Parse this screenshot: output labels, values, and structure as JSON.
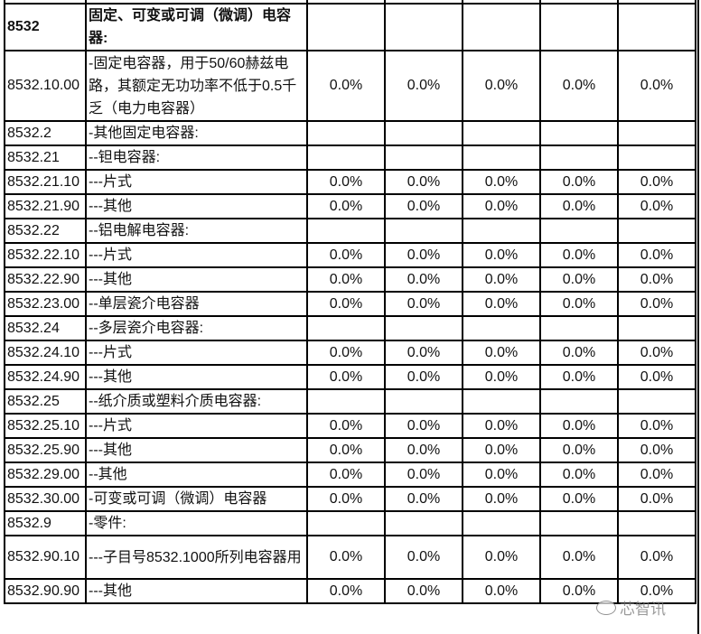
{
  "rows": [
    {
      "code": "8532",
      "desc": "固定、可变或可调（微调）电容器:",
      "rates": [
        "",
        "",
        "",
        "",
        ""
      ],
      "header": true
    },
    {
      "code": "8532.10.00",
      "desc": "-固定电容器，用于50/60赫兹电路，其额定无功功率不低于0.5千乏（电力电容器）",
      "rates": [
        "0.0%",
        "0.0%",
        "0.0%",
        "0.0%",
        "0.0%"
      ]
    },
    {
      "code": "8532.2",
      "desc": "-其他固定电容器:",
      "rates": [
        "",
        "",
        "",
        "",
        ""
      ]
    },
    {
      "code": "8532.21",
      "desc": "--钽电容器:",
      "rates": [
        "",
        "",
        "",
        "",
        ""
      ]
    },
    {
      "code": "8532.21.10",
      "desc": "---片式",
      "rates": [
        "0.0%",
        "0.0%",
        "0.0%",
        "0.0%",
        "0.0%"
      ]
    },
    {
      "code": "8532.21.90",
      "desc": "---其他",
      "rates": [
        "0.0%",
        "0.0%",
        "0.0%",
        "0.0%",
        "0.0%"
      ]
    },
    {
      "code": "8532.22",
      "desc": "--铝电解电容器:",
      "rates": [
        "",
        "",
        "",
        "",
        ""
      ]
    },
    {
      "code": "8532.22.10",
      "desc": "---片式",
      "rates": [
        "0.0%",
        "0.0%",
        "0.0%",
        "0.0%",
        "0.0%"
      ]
    },
    {
      "code": "8532.22.90",
      "desc": "---其他",
      "rates": [
        "0.0%",
        "0.0%",
        "0.0%",
        "0.0%",
        "0.0%"
      ]
    },
    {
      "code": "8532.23.00",
      "desc": "--单层瓷介电容器",
      "rates": [
        "0.0%",
        "0.0%",
        "0.0%",
        "0.0%",
        "0.0%"
      ]
    },
    {
      "code": "8532.24",
      "desc": "--多层瓷介电容器:",
      "rates": [
        "",
        "",
        "",
        "",
        ""
      ]
    },
    {
      "code": "8532.24.10",
      "desc": "---片式",
      "rates": [
        "0.0%",
        "0.0%",
        "0.0%",
        "0.0%",
        "0.0%"
      ]
    },
    {
      "code": "8532.24.90",
      "desc": "---其他",
      "rates": [
        "0.0%",
        "0.0%",
        "0.0%",
        "0.0%",
        "0.0%"
      ]
    },
    {
      "code": "8532.25",
      "desc": "--纸介质或塑料介质电容器:",
      "rates": [
        "",
        "",
        "",
        "",
        ""
      ]
    },
    {
      "code": "8532.25.10",
      "desc": "---片式",
      "rates": [
        "0.0%",
        "0.0%",
        "0.0%",
        "0.0%",
        "0.0%"
      ]
    },
    {
      "code": "8532.25.90",
      "desc": "---其他",
      "rates": [
        "0.0%",
        "0.0%",
        "0.0%",
        "0.0%",
        "0.0%"
      ]
    },
    {
      "code": "8532.29.00",
      "desc": "--其他",
      "rates": [
        "0.0%",
        "0.0%",
        "0.0%",
        "0.0%",
        "0.0%"
      ]
    },
    {
      "code": "8532.30.00",
      "desc": "-可变或可调（微调）电容器",
      "rates": [
        "0.0%",
        "0.0%",
        "0.0%",
        "0.0%",
        "0.0%"
      ]
    },
    {
      "code": "8532.9",
      "desc": "-零件:",
      "rates": [
        "",
        "",
        "",
        "",
        ""
      ]
    },
    {
      "code": "8532.90.10",
      "desc": "---子目号8532.1000所列电容器用",
      "rates": [
        "0.0%",
        "0.0%",
        "0.0%",
        "0.0%",
        "0.0%"
      ]
    },
    {
      "code": "8532.90.90",
      "desc": "---其他",
      "rates": [
        "0.0%",
        "0.0%",
        "0.0%",
        "0.0%",
        "0.0%"
      ]
    }
  ],
  "watermark": "芯智讯"
}
